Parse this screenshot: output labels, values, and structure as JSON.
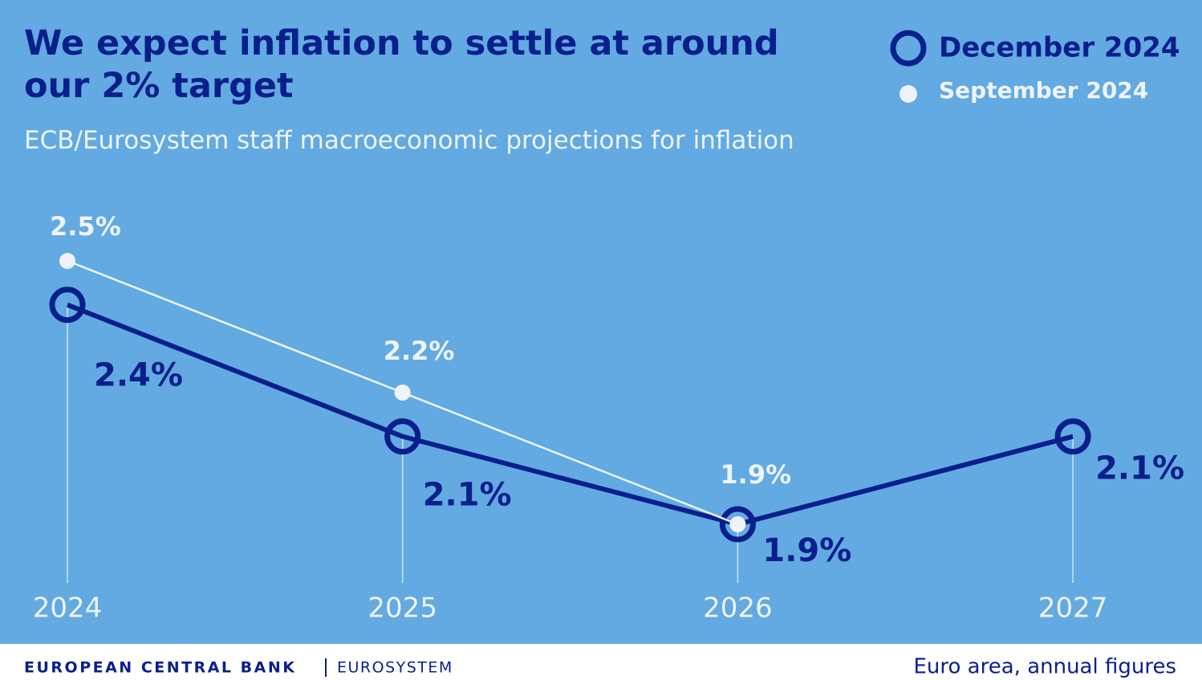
{
  "chart_data": {
    "type": "line",
    "title": "We expect inflation to settle at around our 2% target",
    "subtitle": "ECB/Eurosystem staff macroeconomic projections for inflation",
    "categories": [
      "2024",
      "2025",
      "2026",
      "2027"
    ],
    "series": [
      {
        "name": "December 2024",
        "color": "#0b1f8c",
        "values": [
          2.4,
          2.1,
          1.9,
          2.1
        ],
        "value_labels": [
          "2.4%",
          "2.1%",
          "1.9%",
          "2.1%"
        ]
      },
      {
        "name": "September 2024",
        "color": "#eef3f9",
        "values": [
          2.5,
          2.2,
          1.9,
          null
        ],
        "value_labels": [
          "2.5%",
          "2.2%",
          "1.9%",
          null
        ]
      }
    ],
    "legend": "top-right",
    "brand": "EUROPEAN CENTRAL BANK",
    "brand_sub": "EUROSYSTEM",
    "note": "Euro area, annual figures"
  }
}
